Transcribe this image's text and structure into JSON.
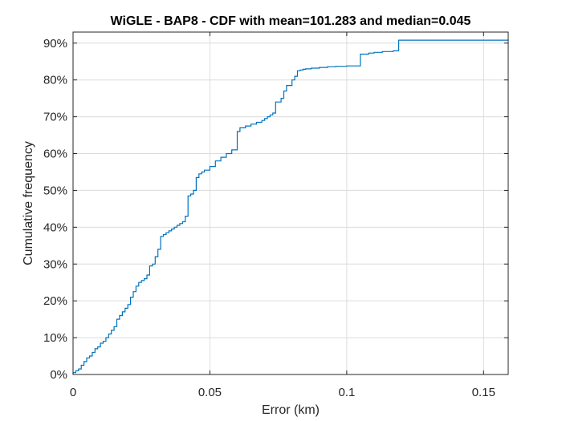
{
  "chart_data": {
    "type": "line",
    "title": "WiGLE - BAP8 - CDF with mean=101.283 and median=0.045",
    "xlabel": "Error (km)",
    "ylabel": "Cumulative frequency",
    "xlim": [
      0,
      0.159
    ],
    "ylim": [
      0,
      93
    ],
    "x_ticks": [
      0,
      0.05,
      0.1,
      0.15
    ],
    "x_tick_labels": [
      "0",
      "0.05",
      "0.1",
      "0.15"
    ],
    "y_ticks": [
      0,
      10,
      20,
      30,
      40,
      50,
      60,
      70,
      80,
      90
    ],
    "y_tick_labels": [
      "0%",
      "10%",
      "20%",
      "30%",
      "40%",
      "50%",
      "60%",
      "70%",
      "80%",
      "90%"
    ],
    "grid": true,
    "line_color": "#0072BD",
    "series": [
      {
        "x": [
          0,
          0.001,
          0.002,
          0.003,
          0.004,
          0.005,
          0.006,
          0.007,
          0.008,
          0.009,
          0.01,
          0.011,
          0.012,
          0.013,
          0.014,
          0.015,
          0.016,
          0.017,
          0.018,
          0.019,
          0.02,
          0.021,
          0.022,
          0.023,
          0.024,
          0.025,
          0.026,
          0.027,
          0.028,
          0.029,
          0.03,
          0.031,
          0.032,
          0.033,
          0.034,
          0.035,
          0.036,
          0.037,
          0.038,
          0.039,
          0.04,
          0.041,
          0.042,
          0.043,
          0.044,
          0.045,
          0.046,
          0.047,
          0.048,
          0.05,
          0.052,
          0.054,
          0.056,
          0.058,
          0.06,
          0.061,
          0.063,
          0.065,
          0.067,
          0.069,
          0.07,
          0.071,
          0.072,
          0.073,
          0.074,
          0.076,
          0.077,
          0.078,
          0.08,
          0.081,
          0.082,
          0.083,
          0.084,
          0.085,
          0.087,
          0.09,
          0.093,
          0.096,
          0.1,
          0.105,
          0.108,
          0.11,
          0.113,
          0.117,
          0.119,
          0.159
        ],
        "y": [
          0.5,
          1.0,
          1.5,
          2.5,
          3.5,
          4.5,
          5.0,
          6.0,
          7.0,
          7.5,
          8.5,
          9.0,
          10.0,
          11.0,
          12.0,
          13.0,
          15.0,
          16.0,
          17.0,
          18.0,
          19.0,
          21.0,
          22.5,
          24.0,
          25.0,
          25.5,
          26.0,
          27.0,
          29.5,
          30.0,
          32.0,
          34.0,
          37.5,
          38.0,
          38.5,
          39.0,
          39.5,
          40.0,
          40.5,
          41.0,
          41.5,
          43.0,
          48.5,
          49.0,
          50.0,
          53.5,
          54.5,
          55.0,
          55.5,
          56.5,
          58.0,
          59.0,
          60.0,
          61.0,
          66.0,
          67.0,
          67.5,
          68.0,
          68.5,
          69.0,
          69.5,
          70.0,
          70.5,
          71.0,
          74.0,
          75.0,
          77.0,
          78.5,
          80.0,
          81.0,
          82.5,
          82.7,
          82.9,
          83.0,
          83.2,
          83.4,
          83.6,
          83.7,
          83.8,
          87.0,
          87.3,
          87.5,
          87.7,
          87.9,
          90.8,
          91.0
        ]
      }
    ]
  }
}
